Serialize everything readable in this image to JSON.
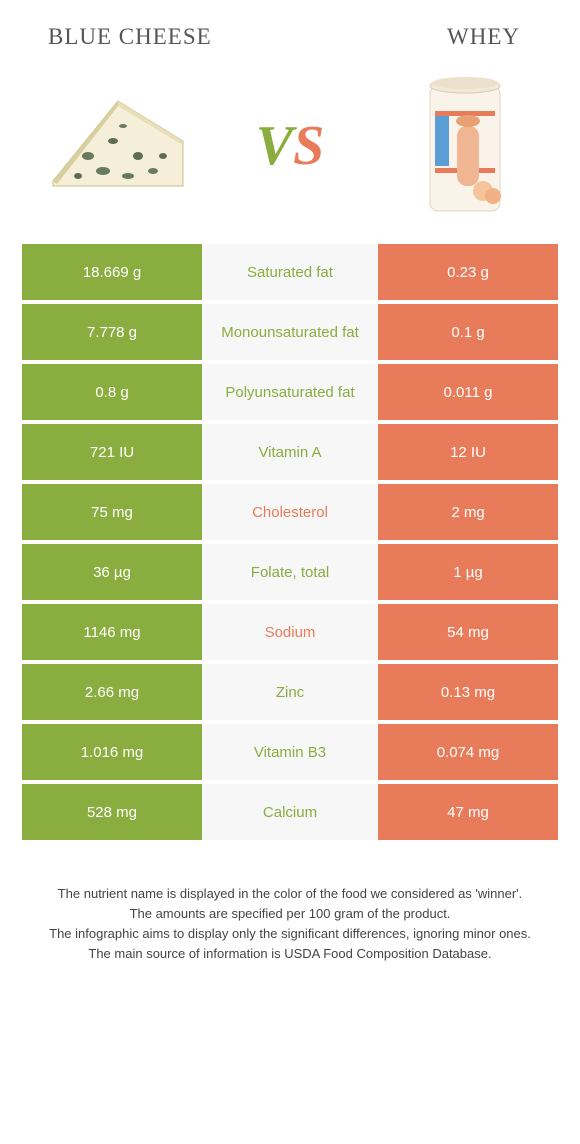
{
  "header": {
    "left_title": "BLUE CHEESE",
    "right_title": "WHEY"
  },
  "vs": {
    "v": "V",
    "s": "S"
  },
  "colors": {
    "left": "#8aad3f",
    "right": "#e87c5a",
    "mid_bg": "#f7f7f7"
  },
  "rows": [
    {
      "left": "18.669 g",
      "label": "Saturated fat",
      "right": "0.23 g",
      "winner": "left"
    },
    {
      "left": "7.778 g",
      "label": "Monounsaturated fat",
      "right": "0.1 g",
      "winner": "left"
    },
    {
      "left": "0.8 g",
      "label": "Polyunsaturated fat",
      "right": "0.011 g",
      "winner": "left"
    },
    {
      "left": "721 IU",
      "label": "Vitamin A",
      "right": "12 IU",
      "winner": "left"
    },
    {
      "left": "75 mg",
      "label": "Cholesterol",
      "right": "2 mg",
      "winner": "right"
    },
    {
      "left": "36 µg",
      "label": "Folate, total",
      "right": "1 µg",
      "winner": "left"
    },
    {
      "left": "1146 mg",
      "label": "Sodium",
      "right": "54 mg",
      "winner": "right"
    },
    {
      "left": "2.66 mg",
      "label": "Zinc",
      "right": "0.13 mg",
      "winner": "left"
    },
    {
      "left": "1.016 mg",
      "label": "Vitamin B3",
      "right": "0.074 mg",
      "winner": "left"
    },
    {
      "left": "528 mg",
      "label": "Calcium",
      "right": "47 mg",
      "winner": "left"
    }
  ],
  "footer": {
    "line1": "The nutrient name is displayed in the color of the food we considered as 'winner'.",
    "line2": "The amounts are specified per 100 gram of the product.",
    "line3": "The infographic aims to display only the significant differences, ignoring minor ones.",
    "line4": "The main source of information is USDA Food Composition Database."
  }
}
